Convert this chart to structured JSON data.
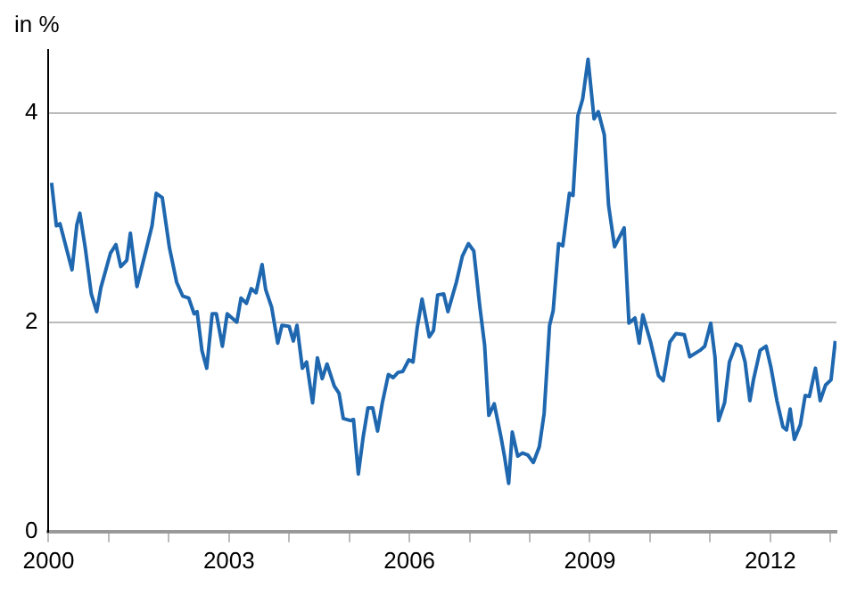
{
  "chart_data": {
    "type": "line",
    "ylabel": "in %",
    "x": [
      2000.05,
      2000.13,
      2000.19,
      2000.39,
      2000.47,
      2000.52,
      2000.61,
      2000.71,
      2000.8,
      2000.87,
      2001.03,
      2001.12,
      2001.2,
      2001.3,
      2001.36,
      2001.47,
      2001.63,
      2001.72,
      2001.79,
      2001.89,
      2002.01,
      2002.13,
      2002.23,
      2002.33,
      2002.42,
      2002.47,
      2002.55,
      2002.63,
      2002.72,
      2002.79,
      2002.89,
      2002.97,
      2003.13,
      2003.2,
      2003.29,
      2003.37,
      2003.45,
      2003.55,
      2003.61,
      2003.71,
      2003.81,
      2003.88,
      2004.0,
      2004.07,
      2004.13,
      2004.22,
      2004.29,
      2004.39,
      2004.47,
      2004.55,
      2004.63,
      2004.75,
      2004.83,
      2004.9,
      2005.02,
      2005.07,
      2005.15,
      2005.23,
      2005.31,
      2005.39,
      2005.47,
      2005.55,
      2005.65,
      2005.73,
      2005.81,
      2005.89,
      2005.99,
      2006.06,
      2006.13,
      2006.21,
      2006.33,
      2006.4,
      2006.47,
      2006.57,
      2006.64,
      2006.78,
      2006.88,
      2006.98,
      2007.07,
      2007.17,
      2007.25,
      2007.32,
      2007.41,
      2007.52,
      2007.58,
      2007.65,
      2007.71,
      2007.8,
      2007.88,
      2007.97,
      2008.06,
      2008.16,
      2008.24,
      2008.33,
      2008.39,
      2008.48,
      2008.55,
      2008.66,
      2008.72,
      2008.8,
      2008.88,
      2008.97,
      2009.07,
      2009.14,
      2009.24,
      2009.31,
      2009.41,
      2009.57,
      2009.65,
      2009.75,
      2009.82,
      2009.88,
      2010.01,
      2010.14,
      2010.22,
      2010.33,
      2010.43,
      2010.57,
      2010.66,
      2010.83,
      2010.91,
      2011.01,
      2011.08,
      2011.14,
      2011.24,
      2011.32,
      2011.43,
      2011.51,
      2011.58,
      2011.66,
      2011.72,
      2011.83,
      2011.93,
      2012.01,
      2012.11,
      2012.21,
      2012.27,
      2012.33,
      2012.4,
      2012.5,
      2012.58,
      2012.65,
      2012.75,
      2012.83,
      2012.92,
      2013.01,
      2013.08
    ],
    "series": [
      {
        "color": "#1f68b0",
        "values": [
          3.33,
          2.92,
          2.94,
          2.5,
          2.93,
          3.04,
          2.71,
          2.27,
          2.1,
          2.33,
          2.66,
          2.74,
          2.53,
          2.59,
          2.85,
          2.34,
          2.71,
          2.92,
          3.23,
          3.19,
          2.71,
          2.38,
          2.25,
          2.23,
          2.08,
          2.1,
          1.73,
          1.56,
          2.08,
          2.08,
          1.77,
          2.08,
          2.0,
          2.23,
          2.18,
          2.32,
          2.28,
          2.55,
          2.31,
          2.14,
          1.8,
          1.97,
          1.96,
          1.82,
          1.97,
          1.56,
          1.62,
          1.23,
          1.66,
          1.46,
          1.6,
          1.39,
          1.32,
          1.08,
          1.06,
          1.07,
          0.55,
          0.9,
          1.18,
          1.18,
          0.96,
          1.23,
          1.5,
          1.47,
          1.52,
          1.53,
          1.64,
          1.62,
          1.95,
          2.22,
          1.86,
          1.92,
          2.26,
          2.27,
          2.1,
          2.38,
          2.63,
          2.75,
          2.68,
          2.15,
          1.78,
          1.11,
          1.22,
          0.91,
          0.72,
          0.46,
          0.95,
          0.72,
          0.75,
          0.73,
          0.66,
          0.81,
          1.13,
          1.97,
          2.11,
          2.75,
          2.73,
          3.23,
          3.21,
          3.97,
          4.13,
          4.51,
          3.94,
          4.01,
          3.79,
          3.12,
          2.72,
          2.9,
          1.99,
          2.04,
          1.8,
          2.07,
          1.81,
          1.49,
          1.44,
          1.81,
          1.89,
          1.88,
          1.67,
          1.73,
          1.77,
          1.99,
          1.67,
          1.06,
          1.23,
          1.62,
          1.79,
          1.77,
          1.62,
          1.25,
          1.45,
          1.73,
          1.77,
          1.57,
          1.25,
          1.0,
          0.97,
          1.17,
          0.88,
          1.02,
          1.3,
          1.29,
          1.56,
          1.25,
          1.4,
          1.45,
          1.82
        ]
      }
    ],
    "xlim": [
      2000,
      2013.1
    ],
    "xticks": [
      2000,
      {
        "value": 2001,
        "label": null
      },
      {
        "value": 2002,
        "label": null
      },
      2003,
      {
        "value": 2004,
        "label": null
      },
      {
        "value": 2005,
        "label": null
      },
      2006,
      {
        "value": 2007,
        "label": null
      },
      {
        "value": 2008,
        "label": null
      },
      2009,
      {
        "value": 2010,
        "label": null
      },
      {
        "value": 2011,
        "label": null
      },
      2012,
      {
        "value": 2013,
        "label": null
      }
    ],
    "ylim": [
      0,
      4.6
    ],
    "yticks": [
      0,
      2,
      4
    ],
    "grid": "y",
    "legend": false,
    "marker": "none",
    "line_style": "solid"
  }
}
